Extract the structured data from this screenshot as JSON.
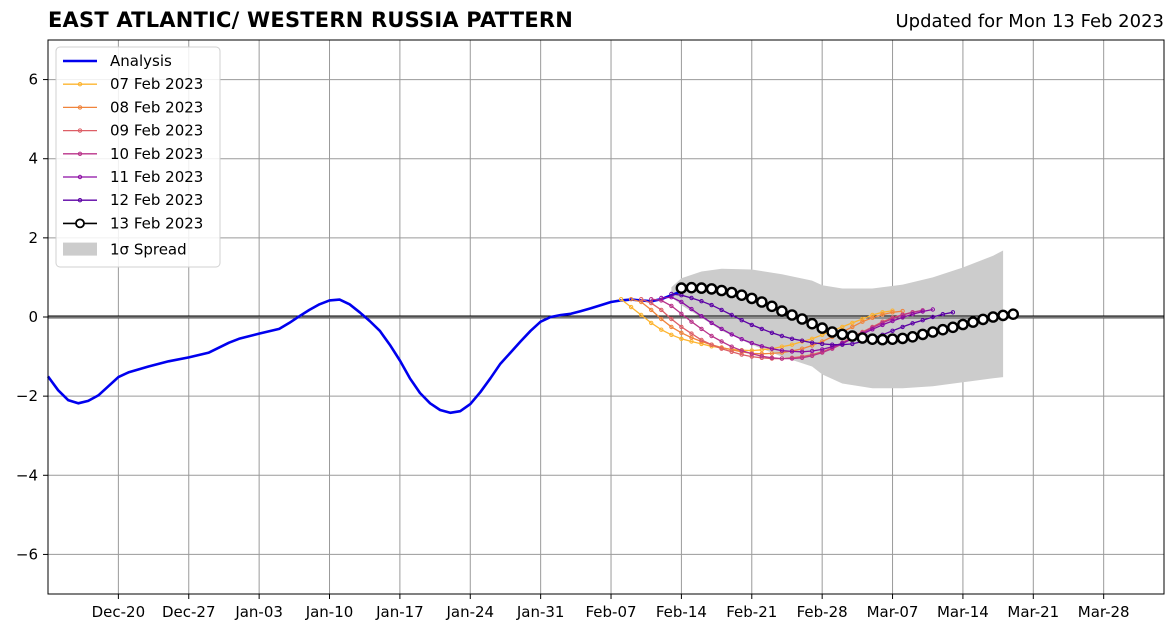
{
  "header": {
    "title": "EAST ATLANTIC/ WESTERN RUSSIA PATTERN",
    "updated": "Updated for Mon 13 Feb 2023"
  },
  "chart_data": {
    "type": "line",
    "x_axis": {
      "type": "date",
      "range": [
        "2022-12-13",
        "2023-04-03"
      ],
      "tick_dates": [
        "2022-12-20",
        "2022-12-27",
        "2023-01-03",
        "2023-01-10",
        "2023-01-17",
        "2023-01-24",
        "2023-01-31",
        "2023-02-07",
        "2023-02-14",
        "2023-02-21",
        "2023-02-28",
        "2023-03-07",
        "2023-03-14",
        "2023-03-21",
        "2023-03-28"
      ],
      "tick_labels": [
        "Dec-20",
        "Dec-27",
        "Jan-03",
        "Jan-10",
        "Jan-17",
        "Jan-24",
        "Jan-31",
        "Feb-07",
        "Feb-14",
        "Feb-21",
        "Feb-28",
        "Mar-07",
        "Mar-14",
        "Mar-21",
        "Mar-28"
      ]
    },
    "y_axis": {
      "range": [
        -7,
        7
      ],
      "ticks": [
        -6,
        -4,
        -2,
        0,
        2,
        4,
        6
      ],
      "tick_labels": [
        "−6",
        "−4",
        "−2",
        "0",
        "2",
        "4",
        "6"
      ]
    },
    "grid": true,
    "zero_line": true,
    "legend_position": "top-left",
    "analysis": {
      "name": "Analysis",
      "color": "#0000ee",
      "points": [
        [
          "2022-12-13",
          -1.5
        ],
        [
          "2022-12-14",
          -1.85
        ],
        [
          "2022-12-15",
          -2.1
        ],
        [
          "2022-12-16",
          -2.18
        ],
        [
          "2022-12-17",
          -2.12
        ],
        [
          "2022-12-18",
          -1.98
        ],
        [
          "2022-12-19",
          -1.75
        ],
        [
          "2022-12-20",
          -1.52
        ],
        [
          "2022-12-21",
          -1.4
        ],
        [
          "2022-12-23",
          -1.25
        ],
        [
          "2022-12-25",
          -1.12
        ],
        [
          "2022-12-27",
          -1.02
        ],
        [
          "2022-12-29",
          -0.9
        ],
        [
          "2022-12-31",
          -0.65
        ],
        [
          "2023-01-01",
          -0.55
        ],
        [
          "2023-01-03",
          -0.42
        ],
        [
          "2023-01-05",
          -0.3
        ],
        [
          "2023-01-06",
          -0.15
        ],
        [
          "2023-01-07",
          0.02
        ],
        [
          "2023-01-08",
          0.18
        ],
        [
          "2023-01-09",
          0.32
        ],
        [
          "2023-01-10",
          0.42
        ],
        [
          "2023-01-11",
          0.44
        ],
        [
          "2023-01-12",
          0.32
        ],
        [
          "2023-01-13",
          0.12
        ],
        [
          "2023-01-14",
          -0.1
        ],
        [
          "2023-01-15",
          -0.35
        ],
        [
          "2023-01-16",
          -0.7
        ],
        [
          "2023-01-17",
          -1.1
        ],
        [
          "2023-01-18",
          -1.55
        ],
        [
          "2023-01-19",
          -1.92
        ],
        [
          "2023-01-20",
          -2.18
        ],
        [
          "2023-01-21",
          -2.35
        ],
        [
          "2023-01-22",
          -2.42
        ],
        [
          "2023-01-23",
          -2.38
        ],
        [
          "2023-01-24",
          -2.2
        ],
        [
          "2023-01-25",
          -1.9
        ],
        [
          "2023-01-26",
          -1.55
        ],
        [
          "2023-01-27",
          -1.18
        ],
        [
          "2023-01-28",
          -0.9
        ],
        [
          "2023-01-29",
          -0.62
        ],
        [
          "2023-01-30",
          -0.35
        ],
        [
          "2023-01-31",
          -0.12
        ],
        [
          "2023-02-01",
          0.0
        ],
        [
          "2023-02-02",
          0.05
        ],
        [
          "2023-02-03",
          0.08
        ],
        [
          "2023-02-04",
          0.15
        ],
        [
          "2023-02-05",
          0.22
        ],
        [
          "2023-02-06",
          0.3
        ],
        [
          "2023-02-07",
          0.38
        ],
        [
          "2023-02-08",
          0.42
        ],
        [
          "2023-02-09",
          0.44
        ],
        [
          "2023-02-10",
          0.42
        ],
        [
          "2023-02-11",
          0.4
        ],
        [
          "2023-02-12",
          0.45
        ],
        [
          "2023-02-13",
          0.55
        ],
        [
          "2023-02-14",
          0.65
        ]
      ]
    },
    "forecasts": [
      {
        "name": "07 Feb 2023",
        "color": "#fdb42f",
        "start": "2023-02-08",
        "step_days": 1,
        "values": [
          0.45,
          0.25,
          0.05,
          -0.15,
          -0.32,
          -0.45,
          -0.55,
          -0.62,
          -0.68,
          -0.74,
          -0.78,
          -0.82,
          -0.84,
          -0.85,
          -0.83,
          -0.8,
          -0.75,
          -0.7,
          -0.62,
          -0.55,
          -0.45,
          -0.35,
          -0.25,
          -0.15,
          -0.05,
          0.05,
          0.12,
          0.16
        ]
      },
      {
        "name": "08 Feb 2023",
        "color": "#f0843c",
        "start": "2023-02-09",
        "step_days": 1,
        "values": [
          0.45,
          0.38,
          0.18,
          -0.05,
          -0.25,
          -0.4,
          -0.52,
          -0.62,
          -0.7,
          -0.77,
          -0.83,
          -0.88,
          -0.92,
          -0.93,
          -0.92,
          -0.9,
          -0.86,
          -0.8,
          -0.72,
          -0.62,
          -0.5,
          -0.38,
          -0.25,
          -0.12,
          -0.02,
          0.06,
          0.12,
          0.15
        ]
      },
      {
        "name": "09 Feb 2023",
        "color": "#dd5e66",
        "start": "2023-02-10",
        "step_days": 1,
        "values": [
          0.45,
          0.35,
          0.18,
          -0.05,
          -0.25,
          -0.42,
          -0.58,
          -0.7,
          -0.8,
          -0.88,
          -0.95,
          -1.0,
          -1.03,
          -1.05,
          -1.05,
          -1.03,
          -1.0,
          -0.95,
          -0.88,
          -0.78,
          -0.65,
          -0.5,
          -0.38,
          -0.25,
          -0.12,
          -0.02,
          0.06,
          0.12
        ]
      },
      {
        "name": "10 Feb 2023",
        "color": "#b93389",
        "start": "2023-02-11",
        "step_days": 1,
        "values": [
          0.45,
          0.42,
          0.28,
          0.08,
          -0.12,
          -0.3,
          -0.48,
          -0.62,
          -0.75,
          -0.85,
          -0.93,
          -0.99,
          -1.03,
          -1.05,
          -1.05,
          -1.03,
          -0.98,
          -0.9,
          -0.8,
          -0.68,
          -0.54,
          -0.4,
          -0.27,
          -0.15,
          -0.04,
          0.05,
          0.12,
          0.17
        ]
      },
      {
        "name": "11 Feb 2023",
        "color": "#8c0ca4",
        "start": "2023-02-12",
        "step_days": 1,
        "values": [
          0.48,
          0.5,
          0.38,
          0.2,
          0.02,
          -0.15,
          -0.3,
          -0.44,
          -0.56,
          -0.66,
          -0.74,
          -0.8,
          -0.85,
          -0.87,
          -0.88,
          -0.86,
          -0.82,
          -0.75,
          -0.66,
          -0.55,
          -0.43,
          -0.31,
          -0.2,
          -0.1,
          -0.01,
          0.07,
          0.14,
          0.19
        ]
      },
      {
        "name": "12 Feb 2023",
        "color": "#5c01a5",
        "start": "2023-02-13",
        "step_days": 1,
        "values": [
          0.58,
          0.55,
          0.48,
          0.4,
          0.3,
          0.18,
          0.05,
          -0.08,
          -0.2,
          -0.3,
          -0.4,
          -0.48,
          -0.55,
          -0.6,
          -0.65,
          -0.68,
          -0.7,
          -0.7,
          -0.68,
          -0.62,
          -0.54,
          -0.45,
          -0.35,
          -0.25,
          -0.16,
          -0.08,
          0.0,
          0.07,
          0.12
        ]
      },
      {
        "name": "13 Feb 2023",
        "color": "#000000",
        "start": "2023-02-14",
        "step_days": 1,
        "values": [
          0.73,
          0.74,
          0.73,
          0.71,
          0.67,
          0.62,
          0.55,
          0.47,
          0.38,
          0.27,
          0.15,
          0.05,
          -0.05,
          -0.17,
          -0.28,
          -0.38,
          -0.44,
          -0.48,
          -0.53,
          -0.56,
          -0.57,
          -0.56,
          -0.54,
          -0.5,
          -0.44,
          -0.38,
          -0.32,
          -0.26,
          -0.19,
          -0.13,
          -0.06,
          0.0,
          0.04,
          0.07
        ]
      }
    ],
    "spread": {
      "name": "1σ Spread",
      "color": "#cccccc",
      "upper": [
        [
          "2023-02-13",
          0.75
        ],
        [
          "2023-02-14",
          0.98
        ],
        [
          "2023-02-16",
          1.15
        ],
        [
          "2023-02-18",
          1.22
        ],
        [
          "2023-02-21",
          1.2
        ],
        [
          "2023-02-24",
          1.08
        ],
        [
          "2023-02-27",
          0.92
        ],
        [
          "2023-02-28",
          0.8
        ],
        [
          "2023-03-02",
          0.72
        ],
        [
          "2023-03-05",
          0.72
        ],
        [
          "2023-03-08",
          0.82
        ],
        [
          "2023-03-11",
          1.0
        ],
        [
          "2023-03-14",
          1.25
        ],
        [
          "2023-03-17",
          1.55
        ],
        [
          "2023-03-18",
          1.68
        ]
      ],
      "lower": [
        [
          "2023-02-13",
          0.5
        ],
        [
          "2023-02-14",
          0.3
        ],
        [
          "2023-02-16",
          -0.02
        ],
        [
          "2023-02-18",
          -0.35
        ],
        [
          "2023-02-21",
          -0.7
        ],
        [
          "2023-02-24",
          -1.0
        ],
        [
          "2023-02-27",
          -1.25
        ],
        [
          "2023-02-28",
          -1.45
        ],
        [
          "2023-03-02",
          -1.68
        ],
        [
          "2023-03-05",
          -1.8
        ],
        [
          "2023-03-08",
          -1.8
        ],
        [
          "2023-03-11",
          -1.75
        ],
        [
          "2023-03-14",
          -1.65
        ],
        [
          "2023-03-17",
          -1.55
        ],
        [
          "2023-03-18",
          -1.52
        ]
      ]
    }
  }
}
